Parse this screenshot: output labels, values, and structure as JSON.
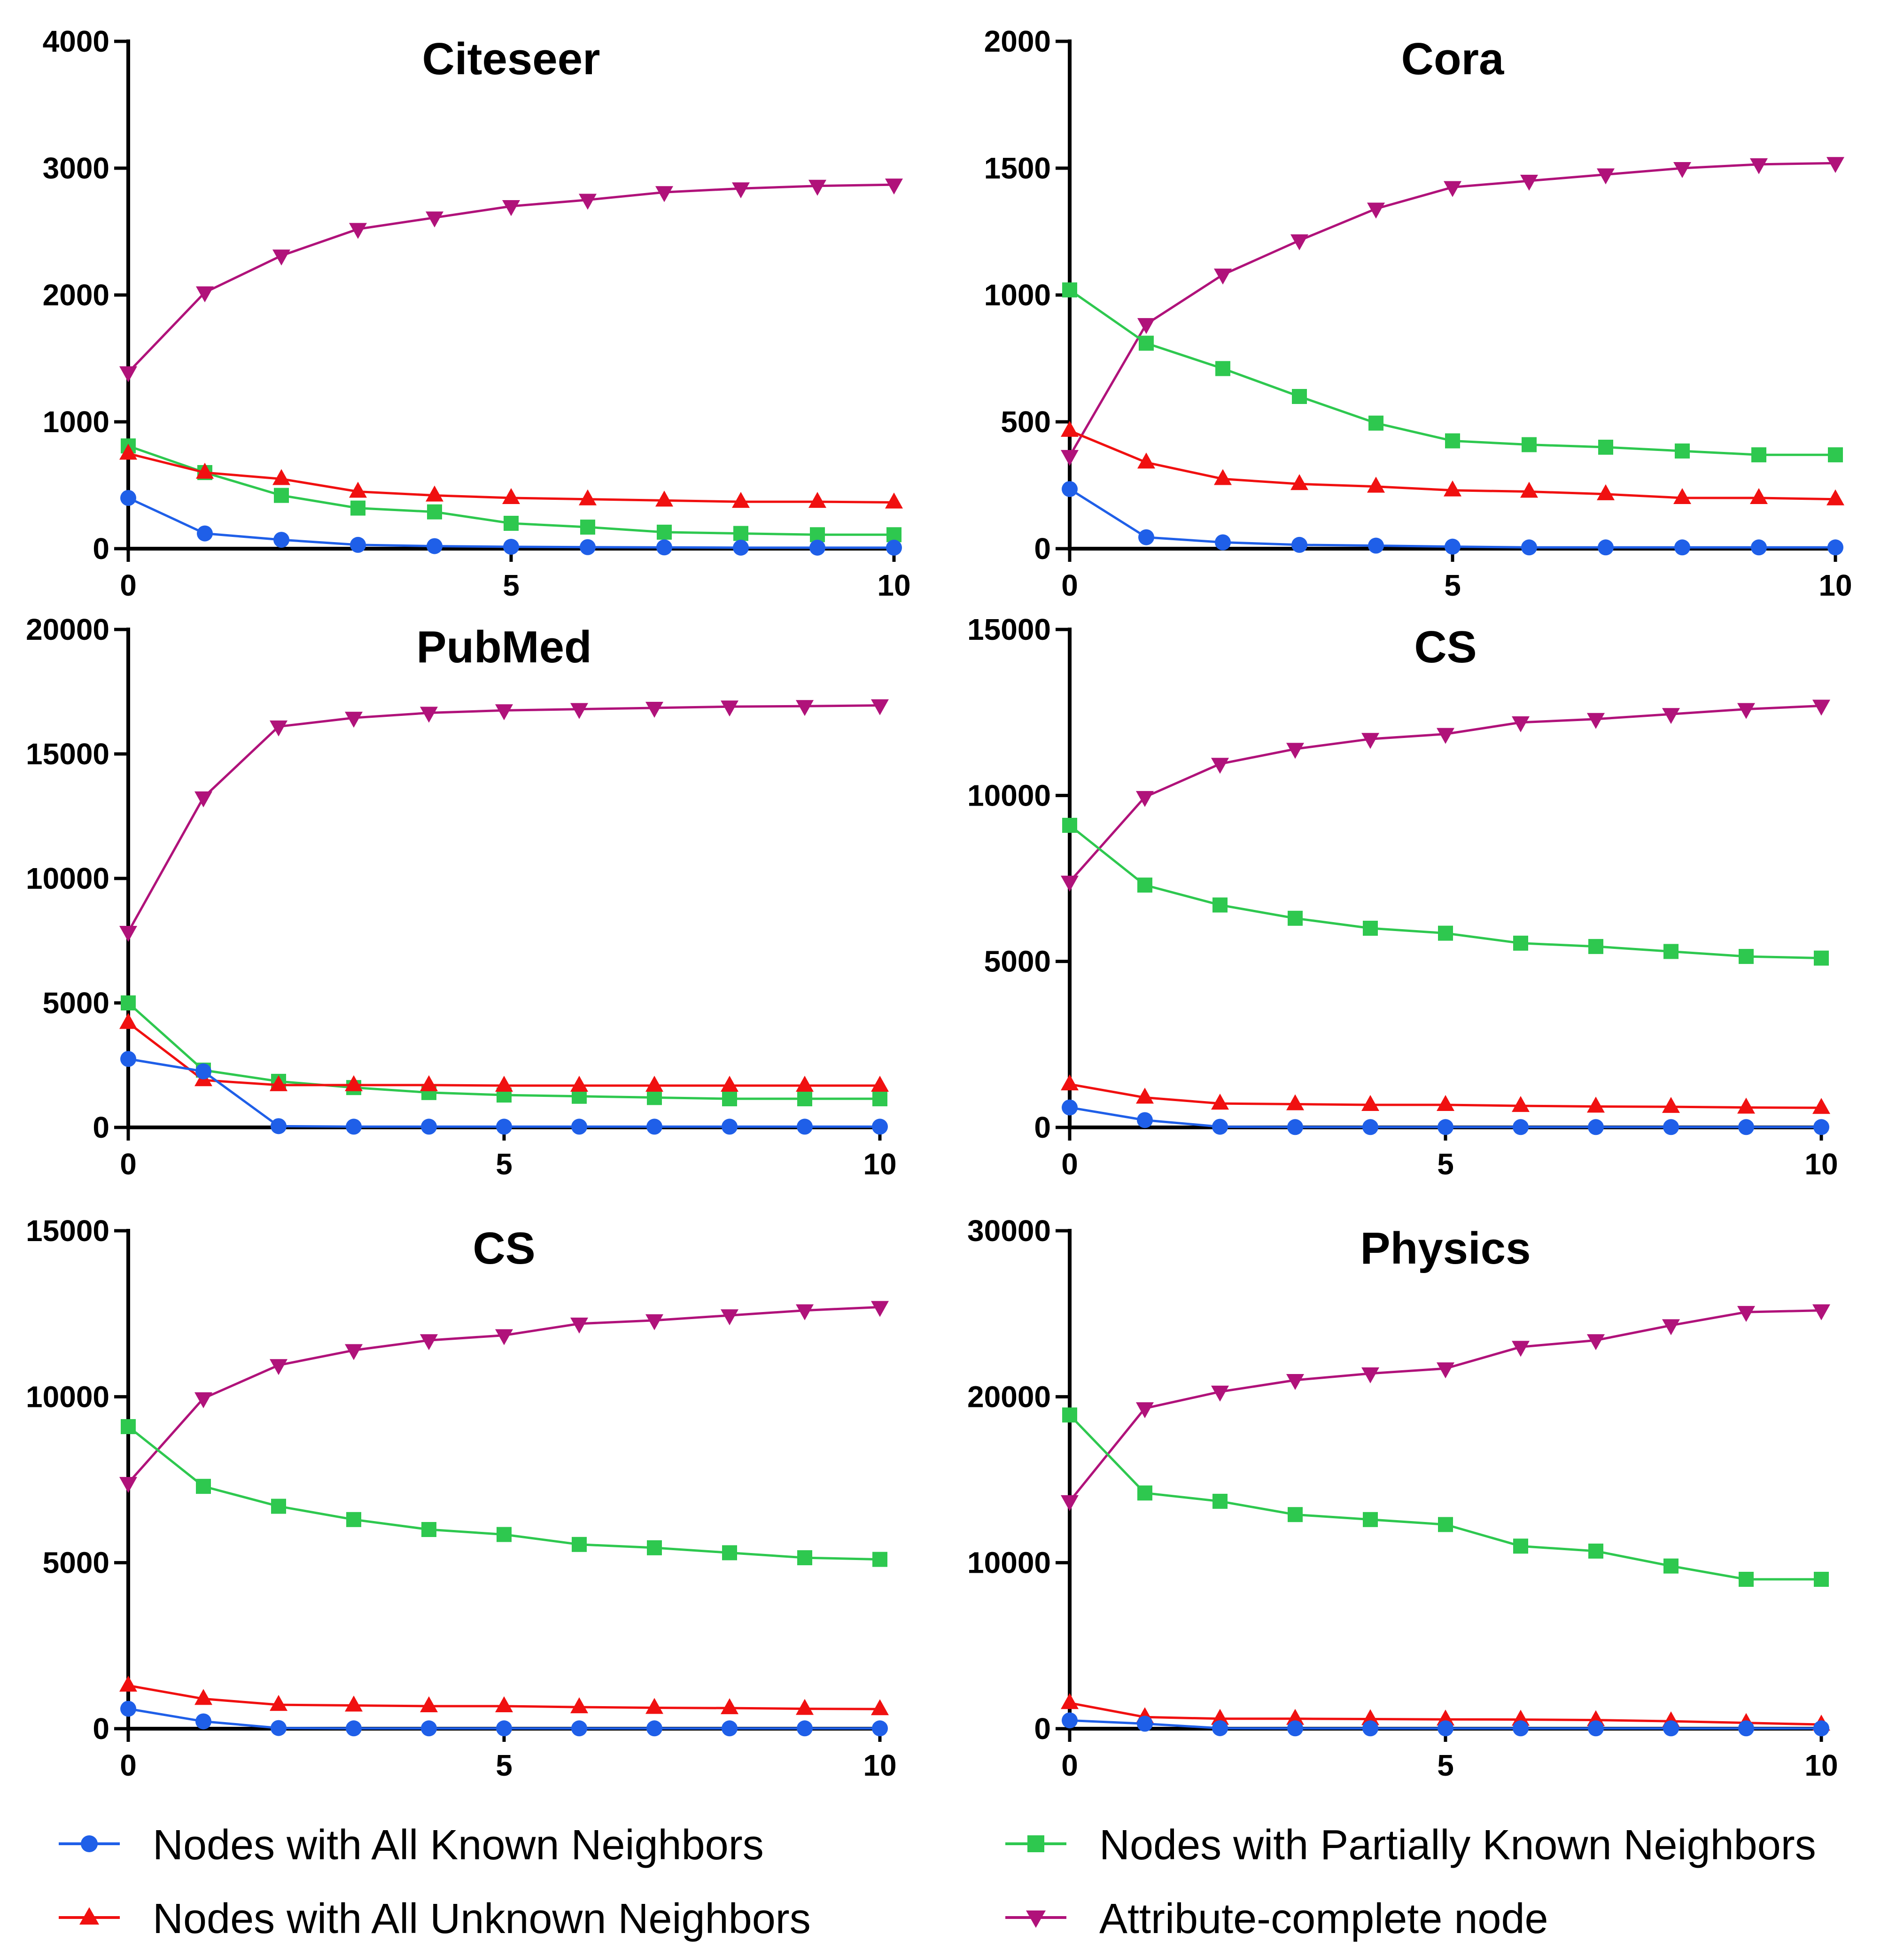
{
  "legend": [
    {
      "label": "Nodes with All Known Neighbors",
      "color": "#1f5fe8",
      "marker": "circle"
    },
    {
      "label": "Nodes with Partially Known Neighbors",
      "color": "#2ec84f",
      "marker": "square"
    },
    {
      "label": "Nodes with All Unknown Neighbors",
      "color": "#f01010",
      "marker": "triangle-up"
    },
    {
      "label": "Attribute-complete node",
      "color": "#b0127a",
      "marker": "triangle-down"
    }
  ],
  "chart_data": [
    {
      "type": "line",
      "title": "Citeseer",
      "x": [
        0,
        1,
        2,
        3,
        4,
        5,
        6,
        7,
        8,
        9,
        10
      ],
      "xlim": [
        0,
        10
      ],
      "xticks": [
        "0",
        "5",
        "10"
      ],
      "ylim": [
        0,
        4000
      ],
      "yticks": [
        "0",
        "1000",
        "2000",
        "3000",
        "4000"
      ],
      "grid": false,
      "series": [
        {
          "name": "Nodes with All Known Neighbors",
          "values": [
            400,
            120,
            70,
            30,
            20,
            15,
            12,
            10,
            8,
            8,
            8
          ]
        },
        {
          "name": "Nodes with Partially Known Neighbors",
          "values": [
            810,
            600,
            420,
            320,
            290,
            200,
            170,
            130,
            120,
            110,
            110
          ]
        },
        {
          "name": "Nodes with All Unknown Neighbors",
          "values": [
            750,
            600,
            550,
            450,
            420,
            400,
            390,
            380,
            370,
            370,
            365
          ]
        },
        {
          "name": "Attribute-complete node",
          "values": [
            1390,
            2020,
            2310,
            2520,
            2610,
            2700,
            2750,
            2810,
            2840,
            2860,
            2870
          ]
        }
      ]
    },
    {
      "type": "line",
      "title": "Cora",
      "x": [
        0,
        1,
        2,
        3,
        4,
        5,
        6,
        7,
        8,
        9,
        10
      ],
      "xlim": [
        0,
        10
      ],
      "xticks": [
        "0",
        "5",
        "10"
      ],
      "ylim": [
        0,
        2000
      ],
      "yticks": [
        "0",
        "500",
        "1000",
        "1500",
        "2000"
      ],
      "grid": false,
      "series": [
        {
          "name": "Nodes with All Known Neighbors",
          "values": [
            235,
            45,
            25,
            15,
            12,
            8,
            5,
            5,
            5,
            5,
            5
          ]
        },
        {
          "name": "Nodes with Partially Known Neighbors",
          "values": [
            1020,
            810,
            710,
            600,
            495,
            425,
            410,
            400,
            385,
            370,
            370
          ]
        },
        {
          "name": "Nodes with All Unknown Neighbors",
          "values": [
            465,
            340,
            275,
            255,
            245,
            230,
            225,
            215,
            200,
            200,
            195
          ]
        },
        {
          "name": "Attribute-complete node",
          "values": [
            365,
            885,
            1080,
            1215,
            1340,
            1425,
            1450,
            1475,
            1500,
            1515,
            1520
          ]
        }
      ]
    },
    {
      "type": "line",
      "title": "PubMed",
      "x": [
        0,
        1,
        2,
        3,
        4,
        5,
        6,
        7,
        8,
        9,
        10
      ],
      "xlim": [
        0,
        10
      ],
      "xticks": [
        "0",
        "5",
        "10"
      ],
      "ylim": [
        0,
        20000
      ],
      "yticks": [
        "0",
        "5000",
        "10000",
        "15000",
        "20000"
      ],
      "grid": false,
      "series": [
        {
          "name": "Nodes with All Known Neighbors",
          "values": [
            2750,
            2250,
            50,
            30,
            30,
            30,
            30,
            30,
            30,
            30,
            30
          ]
        },
        {
          "name": "Nodes with Partially Known Neighbors",
          "values": [
            5000,
            2300,
            1850,
            1600,
            1400,
            1300,
            1250,
            1200,
            1150,
            1150,
            1150
          ]
        },
        {
          "name": "Nodes with All Unknown Neighbors",
          "values": [
            4200,
            1900,
            1700,
            1700,
            1700,
            1680,
            1680,
            1680,
            1680,
            1680,
            1680
          ]
        },
        {
          "name": "Attribute-complete node",
          "values": [
            7850,
            13250,
            16100,
            16450,
            16650,
            16750,
            16800,
            16850,
            16900,
            16920,
            16950
          ]
        }
      ]
    },
    {
      "type": "line",
      "title": "CS",
      "x": [
        0,
        1,
        2,
        3,
        4,
        5,
        6,
        7,
        8,
        9,
        10
      ],
      "xlim": [
        0,
        10
      ],
      "xticks": [
        "0",
        "5",
        "10"
      ],
      "ylim": [
        0,
        15000
      ],
      "yticks": [
        "0",
        "5000",
        "10000",
        "15000"
      ],
      "grid": false,
      "series": [
        {
          "name": "Nodes with All Known Neighbors",
          "values": [
            600,
            220,
            20,
            10,
            10,
            10,
            10,
            10,
            10,
            10,
            10
          ]
        },
        {
          "name": "Nodes with Partially Known Neighbors",
          "values": [
            9100,
            7300,
            6700,
            6300,
            6000,
            5850,
            5550,
            5450,
            5300,
            5150,
            5100
          ]
        },
        {
          "name": "Nodes with All Unknown Neighbors",
          "values": [
            1300,
            900,
            720,
            700,
            680,
            680,
            650,
            630,
            620,
            600,
            590
          ]
        },
        {
          "name": "Attribute-complete node",
          "values": [
            7400,
            9950,
            10950,
            11400,
            11700,
            11850,
            12200,
            12300,
            12450,
            12600,
            12700
          ]
        }
      ]
    },
    {
      "type": "line",
      "title": "CS",
      "x": [
        0,
        1,
        2,
        3,
        4,
        5,
        6,
        7,
        8,
        9,
        10
      ],
      "xlim": [
        0,
        10
      ],
      "xticks": [
        "0",
        "5",
        "10"
      ],
      "ylim": [
        0,
        15000
      ],
      "yticks": [
        "0",
        "5000",
        "10000",
        "15000"
      ],
      "grid": false,
      "series": [
        {
          "name": "Nodes with All Known Neighbors",
          "values": [
            600,
            220,
            20,
            10,
            10,
            10,
            10,
            10,
            10,
            10,
            10
          ]
        },
        {
          "name": "Nodes with Partially Known Neighbors",
          "values": [
            9100,
            7300,
            6700,
            6300,
            6000,
            5850,
            5550,
            5450,
            5300,
            5150,
            5100
          ]
        },
        {
          "name": "Nodes with All Unknown Neighbors",
          "values": [
            1300,
            900,
            720,
            700,
            680,
            680,
            650,
            630,
            620,
            600,
            590
          ]
        },
        {
          "name": "Attribute-complete node",
          "values": [
            7400,
            9950,
            10950,
            11400,
            11700,
            11850,
            12200,
            12300,
            12450,
            12600,
            12700
          ]
        }
      ]
    },
    {
      "type": "line",
      "title": "Physics",
      "x": [
        0,
        1,
        2,
        3,
        4,
        5,
        6,
        7,
        8,
        9,
        10
      ],
      "xlim": [
        0,
        10
      ],
      "xticks": [
        "0",
        "5",
        "10"
      ],
      "ylim": [
        0,
        30000
      ],
      "yticks": [
        "0",
        "10000",
        "20000",
        "30000"
      ],
      "grid": false,
      "series": [
        {
          "name": "Nodes with All Known Neighbors",
          "values": [
            500,
            300,
            30,
            20,
            20,
            20,
            20,
            20,
            20,
            20,
            20
          ]
        },
        {
          "name": "Nodes with Partially Known Neighbors",
          "values": [
            18900,
            14200,
            13700,
            12900,
            12600,
            12300,
            11000,
            10700,
            9800,
            9000,
            9000
          ]
        },
        {
          "name": "Nodes with All Unknown Neighbors",
          "values": [
            1550,
            700,
            600,
            600,
            580,
            560,
            550,
            520,
            450,
            350,
            250
          ]
        },
        {
          "name": "Attribute-complete node",
          "values": [
            13700,
            19300,
            20300,
            21000,
            21400,
            21700,
            23000,
            23400,
            24300,
            25100,
            25200
          ]
        }
      ]
    }
  ]
}
